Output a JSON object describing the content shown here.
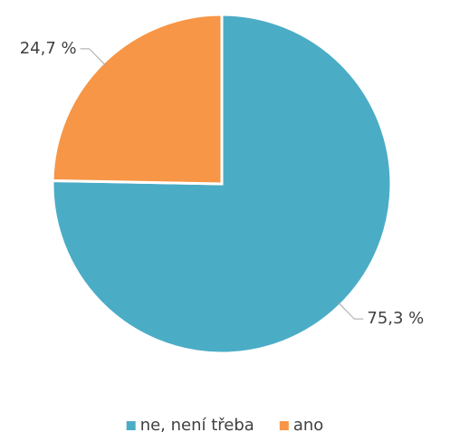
{
  "chart_data": {
    "type": "pie",
    "categories": [
      "ne, není třeba",
      "ano"
    ],
    "values": [
      75.3,
      24.7
    ],
    "value_labels": [
      "75,3 %",
      "24,7 %"
    ],
    "colors": [
      "#4bacc6",
      "#f79646"
    ],
    "legend": "bottom"
  }
}
